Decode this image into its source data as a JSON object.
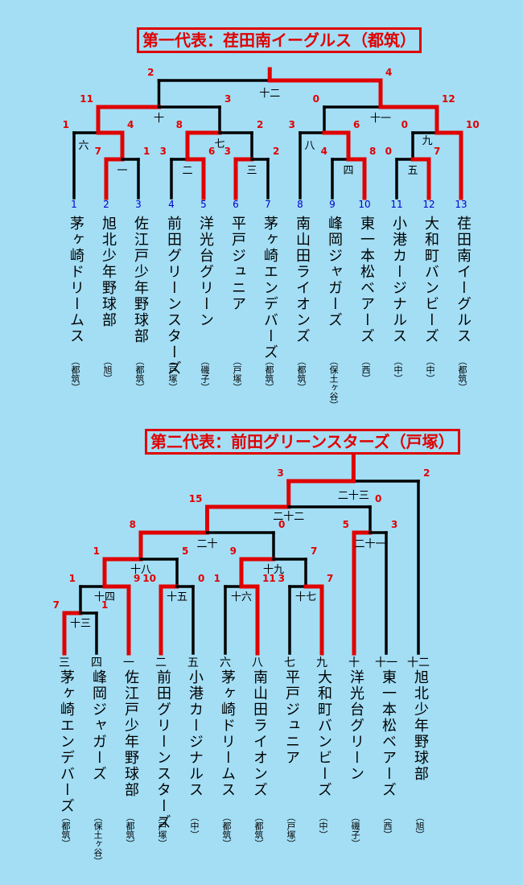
{
  "bracket1": {
    "title": "第一代表：荏田南イーグルス（都筑）",
    "teams": [
      {
        "seed": "1",
        "name": "茅ヶ崎ドリームス",
        "area": "（都筑）"
      },
      {
        "seed": "2",
        "name": "旭北少年野球部",
        "area": "（旭）"
      },
      {
        "seed": "3",
        "name": "佐江戸少年野球部",
        "area": "（都筑）"
      },
      {
        "seed": "4",
        "name": "前田グリーンスターズ",
        "area": "（戸塚）"
      },
      {
        "seed": "5",
        "name": "洋光台グリーン",
        "area": "（磯子）"
      },
      {
        "seed": "6",
        "name": "平戸ジュニア",
        "area": "（戸塚）"
      },
      {
        "seed": "7",
        "name": "茅ヶ崎エンデバーズ",
        "area": "（都筑）"
      },
      {
        "seed": "8",
        "name": "南山田ライオンズ",
        "area": "（都筑）"
      },
      {
        "seed": "9",
        "name": "峰岡ジャガーズ",
        "area": "（保土ヶ谷）"
      },
      {
        "seed": "10",
        "name": "東一本松ベアーズ",
        "area": "（西）"
      },
      {
        "seed": "11",
        "name": "小港カージナルス",
        "area": "（中）"
      },
      {
        "seed": "12",
        "name": "大和町バンビーズ",
        "area": "（中）"
      },
      {
        "seed": "13",
        "name": "荏田南イーグルス",
        "area": "（都筑）"
      }
    ],
    "matches": [
      {
        "label": "一",
        "scores": [
          "7",
          "1"
        ]
      },
      {
        "label": "二",
        "scores": [
          "3",
          "6"
        ]
      },
      {
        "label": "三",
        "scores": [
          "3",
          "2"
        ]
      },
      {
        "label": "四",
        "scores": [
          "4",
          "8"
        ]
      },
      {
        "label": "五",
        "scores": [
          "0",
          "7"
        ]
      },
      {
        "label": "六",
        "scores": [
          "1",
          "4"
        ]
      },
      {
        "label": "七",
        "scores": [
          "8",
          "2"
        ]
      },
      {
        "label": "八",
        "scores": [
          "3",
          "6"
        ]
      },
      {
        "label": "九",
        "scores": [
          "0",
          "10"
        ]
      },
      {
        "label": "十",
        "scores": [
          "11",
          "3"
        ]
      },
      {
        "label": "十一",
        "scores": [
          "0",
          "12"
        ]
      },
      {
        "label": "十二",
        "scores": [
          "2",
          "4"
        ]
      }
    ]
  },
  "bracket2": {
    "title": "第二代表：前田グリーンスターズ（戸塚）",
    "teams": [
      {
        "seed": "三",
        "name": "茅ヶ崎エンデバーズ",
        "area": "（都筑）"
      },
      {
        "seed": "四",
        "name": "峰岡ジャガーズ",
        "area": "（保土ヶ谷）"
      },
      {
        "seed": "一",
        "name": "佐江戸少年野球部",
        "area": "（都筑）"
      },
      {
        "seed": "二",
        "name": "前田グリーンスターズ",
        "area": "（戸塚）"
      },
      {
        "seed": "五",
        "name": "小港カージナルス",
        "area": "（中）"
      },
      {
        "seed": "六",
        "name": "茅ヶ崎ドリームス",
        "area": "（都筑）"
      },
      {
        "seed": "八",
        "name": "南山田ライオンズ",
        "area": "（都筑）"
      },
      {
        "seed": "七",
        "name": "平戸ジュニア",
        "area": "（戸塚）"
      },
      {
        "seed": "九",
        "name": "大和町バンビーズ",
        "area": "（中）"
      },
      {
        "seed": "十",
        "name": "洋光台グリーン",
        "area": "（磯子）"
      },
      {
        "seed": "十一",
        "name": "東一本松ベアーズ",
        "area": "（西）"
      },
      {
        "seed": "十二",
        "name": "旭北少年野球部",
        "area": "（旭）"
      }
    ],
    "matches": [
      {
        "label": "十三",
        "scores": [
          "7",
          "1"
        ]
      },
      {
        "label": "十四",
        "scores": [
          "1",
          "9"
        ]
      },
      {
        "label": "十五",
        "scores": [
          "10",
          "0"
        ]
      },
      {
        "label": "十六",
        "scores": [
          "1",
          "11"
        ]
      },
      {
        "label": "十七",
        "scores": [
          "3",
          "7"
        ]
      },
      {
        "label": "十八",
        "scores": [
          "1",
          "5"
        ]
      },
      {
        "label": "十九",
        "scores": [
          "9",
          "7"
        ]
      },
      {
        "label": "二十",
        "scores": [
          "8",
          "0"
        ]
      },
      {
        "label": "二十一",
        "scores": [
          "5",
          "3"
        ]
      },
      {
        "label": "二十二",
        "scores": [
          "15",
          "0"
        ]
      },
      {
        "label": "二十三",
        "scores": [
          "3",
          "2"
        ]
      }
    ]
  },
  "colors": {
    "background": "#a3def5",
    "winner_line": "#e00000",
    "loser_line": "#000000",
    "score": "#e00000",
    "seed_number": "#0000cc"
  }
}
